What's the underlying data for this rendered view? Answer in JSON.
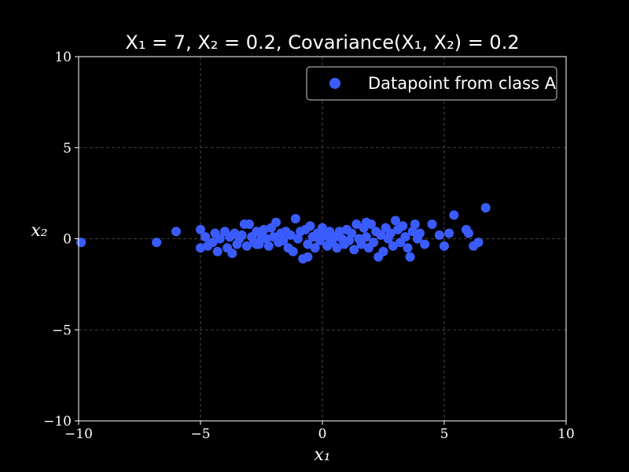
{
  "chart_data": {
    "type": "scatter",
    "title": "X₁ = 7, X₂ = 0.2, Covariance(X₁, X₂) = 0.2",
    "xlabel": "x₁",
    "ylabel": "x₂",
    "xlim": [
      -10,
      10
    ],
    "ylim": [
      -10,
      10
    ],
    "xticks": [
      -10,
      -5,
      0,
      5,
      10
    ],
    "yticks": [
      -10,
      -5,
      0,
      5,
      10
    ],
    "xtick_labels": [
      "−10",
      "−5",
      "0",
      "5",
      "10"
    ],
    "ytick_labels": [
      "−10",
      "−5",
      "0",
      "5",
      "10"
    ],
    "grid": true,
    "legend": {
      "placement": "top-right",
      "entries": [
        "Datapoint from class A"
      ]
    },
    "background_color": "#000000",
    "text_color": "#ffffff",
    "series": [
      {
        "name": "Datapoint from class A",
        "color": "#3a5cff",
        "points": [
          [
            -9.9,
            -0.2
          ],
          [
            -6.8,
            -0.2
          ],
          [
            -6.0,
            0.4
          ],
          [
            -5.0,
            0.5
          ],
          [
            -5.0,
            -0.5
          ],
          [
            -4.8,
            0.1
          ],
          [
            -4.7,
            -0.4
          ],
          [
            -4.5,
            -0.2
          ],
          [
            -4.4,
            0.3
          ],
          [
            -4.3,
            -0.7
          ],
          [
            -4.2,
            0.0
          ],
          [
            -4.0,
            0.4
          ],
          [
            -3.9,
            -0.5
          ],
          [
            -3.8,
            0.1
          ],
          [
            -3.7,
            -0.8
          ],
          [
            -3.6,
            0.3
          ],
          [
            -3.5,
            -0.3
          ],
          [
            -3.4,
            0.0
          ],
          [
            -3.3,
            0.2
          ],
          [
            -3.2,
            0.8
          ],
          [
            -3.1,
            -0.4
          ],
          [
            -3.0,
            0.8
          ],
          [
            -2.9,
            0.1
          ],
          [
            -2.8,
            -0.2
          ],
          [
            -2.7,
            0.4
          ],
          [
            -2.6,
            -0.3
          ],
          [
            -2.5,
            0.1
          ],
          [
            -2.4,
            0.5
          ],
          [
            -2.3,
            0.0
          ],
          [
            -2.2,
            -0.4
          ],
          [
            -2.1,
            0.6
          ],
          [
            -2.0,
            0.1
          ],
          [
            -1.9,
            0.9
          ],
          [
            -1.8,
            -0.2
          ],
          [
            -1.7,
            0.3
          ],
          [
            -1.6,
            -0.1
          ],
          [
            -1.5,
            0.4
          ],
          [
            -1.4,
            -0.5
          ],
          [
            -1.3,
            0.2
          ],
          [
            -1.2,
            -0.7
          ],
          [
            -1.1,
            1.1
          ],
          [
            -1.0,
            0.0
          ],
          [
            -0.9,
            0.4
          ],
          [
            -0.8,
            -1.1
          ],
          [
            -0.7,
            0.5
          ],
          [
            -0.6,
            -0.3
          ],
          [
            -0.5,
            0.7
          ],
          [
            -0.4,
            0.1
          ],
          [
            -0.3,
            -0.5
          ],
          [
            -0.2,
            0.3
          ],
          [
            -0.1,
            -0.1
          ],
          [
            0.0,
            0.6
          ],
          [
            0.1,
            0.2
          ],
          [
            0.2,
            -0.4
          ],
          [
            0.3,
            0.4
          ],
          [
            0.4,
            -0.2
          ],
          [
            0.5,
            0.1
          ],
          [
            0.6,
            -0.5
          ],
          [
            0.7,
            0.4
          ],
          [
            0.8,
            0.0
          ],
          [
            0.9,
            -0.3
          ],
          [
            1.0,
            0.5
          ],
          [
            1.1,
            -0.1
          ],
          [
            1.2,
            0.3
          ],
          [
            1.3,
            -0.6
          ],
          [
            1.4,
            0.8
          ],
          [
            1.5,
            0.0
          ],
          [
            1.6,
            -0.3
          ],
          [
            1.7,
            0.6
          ],
          [
            1.8,
            0.1
          ],
          [
            1.9,
            -0.5
          ],
          [
            2.0,
            0.8
          ],
          [
            2.1,
            -0.2
          ],
          [
            2.2,
            0.4
          ],
          [
            2.3,
            -1.0
          ],
          [
            2.4,
            0.2
          ],
          [
            2.5,
            -0.7
          ],
          [
            2.6,
            0.6
          ],
          [
            2.7,
            0.0
          ],
          [
            2.8,
            0.3
          ],
          [
            2.9,
            -0.4
          ],
          [
            3.0,
            1.0
          ],
          [
            3.1,
            0.5
          ],
          [
            3.2,
            -0.2
          ],
          [
            3.3,
            0.7
          ],
          [
            3.4,
            0.1
          ],
          [
            3.5,
            -0.5
          ],
          [
            3.6,
            -1.0
          ],
          [
            3.7,
            0.4
          ],
          [
            3.8,
            0.8
          ],
          [
            3.9,
            0.0
          ],
          [
            4.0,
            0.3
          ],
          [
            4.2,
            -0.3
          ],
          [
            4.5,
            0.8
          ],
          [
            4.8,
            0.2
          ],
          [
            5.0,
            -0.4
          ],
          [
            5.2,
            0.3
          ],
          [
            5.4,
            1.3
          ],
          [
            5.9,
            0.5
          ],
          [
            6.0,
            0.3
          ],
          [
            6.2,
            -0.4
          ],
          [
            6.4,
            -0.2
          ],
          [
            6.7,
            1.7
          ],
          [
            -0.6,
            -1.0
          ],
          [
            0.3,
            0.0
          ],
          [
            -2.7,
            -0.3
          ],
          [
            1.8,
            0.9
          ]
        ]
      }
    ]
  }
}
